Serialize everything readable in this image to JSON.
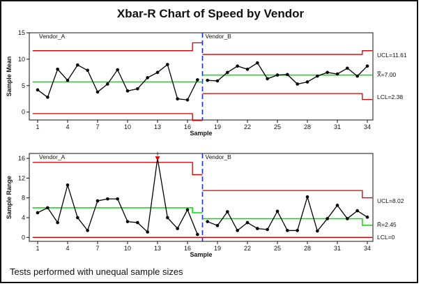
{
  "title": "Xbar-R Chart of Speed by Vendor",
  "footnote": "Tests performed with unequal sample sizes",
  "colors": {
    "limit": "#cc0000",
    "center": "#00dd00",
    "data": "#000000",
    "split": "#1a2fd6",
    "flag": "#dd0000"
  },
  "chart_data": [
    {
      "type": "line",
      "name": "mean-chart",
      "ylabel": "Sample Mean",
      "xlabel": "Sample",
      "ylim": [
        -1.5,
        15
      ],
      "yticks": [
        0,
        5,
        10,
        15
      ],
      "xticks": [
        1,
        4,
        7,
        10,
        13,
        16,
        19,
        22,
        25,
        28,
        31,
        34
      ],
      "groups": [
        "Vendor_A",
        "Vendor_B"
      ],
      "split_after": 17,
      "x": [
        1,
        2,
        3,
        4,
        5,
        6,
        7,
        8,
        9,
        10,
        11,
        12,
        13,
        14,
        15,
        16,
        17,
        18,
        19,
        20,
        21,
        22,
        23,
        24,
        25,
        26,
        27,
        28,
        29,
        30,
        31,
        32,
        33,
        34
      ],
      "values": [
        4.2,
        2.8,
        8.1,
        6.0,
        8.9,
        7.9,
        3.8,
        5.3,
        8.0,
        4.0,
        4.4,
        6.5,
        7.5,
        9.0,
        2.5,
        2.3,
        6.1,
        6.0,
        5.9,
        7.5,
        8.7,
        8.1,
        9.3,
        6.3,
        7.0,
        7.1,
        5.3,
        5.7,
        6.8,
        7.5,
        7.2,
        8.3,
        6.8,
        8.7
      ],
      "ucl": [
        11.61,
        11.61,
        11.61,
        11.61,
        11.61,
        11.61,
        11.61,
        11.61,
        11.61,
        11.61,
        11.61,
        11.61,
        11.61,
        11.61,
        11.61,
        11.61,
        13.1,
        10.9,
        10.9,
        10.9,
        10.9,
        10.9,
        10.9,
        10.9,
        10.9,
        10.9,
        10.9,
        10.9,
        10.9,
        10.9,
        10.9,
        10.9,
        10.9,
        11.61
      ],
      "lcl": [
        -0.3,
        -0.3,
        -0.3,
        -0.3,
        -0.3,
        -0.3,
        -0.3,
        -0.3,
        -0.3,
        -0.3,
        -0.3,
        -0.3,
        -0.3,
        -0.3,
        -0.3,
        -0.3,
        -1.6,
        3.5,
        3.5,
        3.5,
        3.5,
        3.5,
        3.5,
        3.5,
        3.5,
        3.5,
        3.5,
        3.5,
        3.5,
        3.5,
        3.5,
        3.5,
        3.5,
        2.38
      ],
      "center_a": 5.7,
      "center_b": 7.0,
      "labels": {
        "ucl": "UCL=11.61",
        "center": "X̿=7.00",
        "lcl": "LCL=2.38"
      }
    },
    {
      "type": "line",
      "name": "range-chart",
      "ylabel": "Sample Range",
      "xlabel": "Sample",
      "ylim": [
        -0.8,
        17
      ],
      "yticks": [
        0,
        4,
        8,
        12,
        16
      ],
      "xticks": [
        1,
        4,
        7,
        10,
        13,
        16,
        19,
        22,
        25,
        28,
        31,
        34
      ],
      "groups": [
        "Vendor_A",
        "Vendor_B"
      ],
      "split_after": 17,
      "x": [
        1,
        2,
        3,
        4,
        5,
        6,
        7,
        8,
        9,
        10,
        11,
        12,
        13,
        14,
        15,
        16,
        17,
        18,
        19,
        20,
        21,
        22,
        23,
        24,
        25,
        26,
        27,
        28,
        29,
        30,
        31,
        32,
        33,
        34
      ],
      "values": [
        5.0,
        6.0,
        3.0,
        10.6,
        4.0,
        1.4,
        7.4,
        7.8,
        7.8,
        3.2,
        3.0,
        1.1,
        16.0,
        4.0,
        1.8,
        5.6,
        0.6,
        3.2,
        2.4,
        5.2,
        1.4,
        3.0,
        1.8,
        1.6,
        5.3,
        1.4,
        1.4,
        8.2,
        1.3,
        3.8,
        6.5,
        3.8,
        5.4,
        4.1
      ],
      "flagged": [
        13
      ],
      "ucl": [
        15.2,
        15.2,
        15.2,
        15.2,
        15.2,
        15.2,
        15.2,
        15.2,
        15.2,
        15.2,
        15.2,
        15.2,
        15.2,
        15.2,
        15.2,
        15.2,
        12.7,
        9.5,
        9.5,
        9.5,
        9.5,
        9.5,
        9.5,
        9.5,
        9.5,
        9.5,
        9.5,
        9.5,
        9.5,
        9.5,
        9.5,
        9.5,
        9.5,
        8.02
      ],
      "lcl": [
        0,
        0,
        0,
        0,
        0,
        0,
        0,
        0,
        0,
        0,
        0,
        0,
        0,
        0,
        0,
        0,
        0,
        0,
        0,
        0,
        0,
        0,
        0,
        0,
        0,
        0,
        0,
        0,
        0,
        0,
        0,
        0,
        0,
        0
      ],
      "center_a": 6.0,
      "center_a_last": 5.0,
      "center_b": 3.8,
      "center_b_last": 2.45,
      "labels": {
        "ucl": "UCL=8.02",
        "center": "R̄=2.45",
        "lcl": "LCL=0"
      }
    }
  ]
}
